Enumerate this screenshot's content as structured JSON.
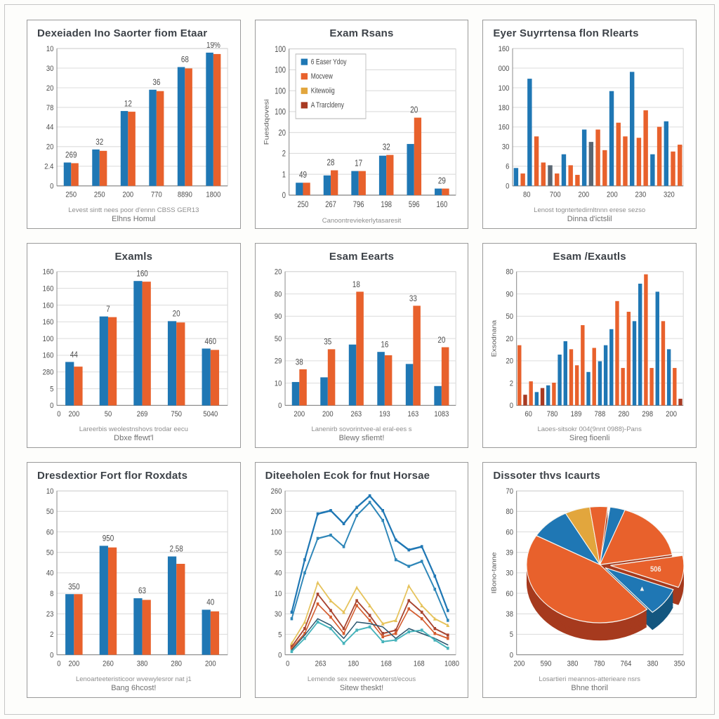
{
  "colors": {
    "blue": "#1f77b4",
    "blue2": "#2e86b8",
    "orange": "#e8612c",
    "amber": "#e2a63d",
    "darkred": "#a83a22",
    "gray": "#5a6672",
    "teal": "#46b3bb",
    "navy": "#29556e",
    "brown": "#a8432e",
    "orangered": "#d45c2e",
    "yellow": "#e6c35c",
    "grid": "#dcdcdc",
    "axis": "#8f8f8f",
    "tick": "#4e4e4e",
    "bar_label": "#4c4c4c",
    "title": "#3d4248",
    "pie_dark": {
      "blue": "#14567f",
      "orange": "#a63a1e",
      "amber": "#a87b22",
      "darkred": "#7c2a16"
    }
  },
  "chart_data": [
    {
      "name": "chart-1",
      "type": "bar",
      "variant": "grouped",
      "title": "Dexeiaden Ino Saorter fiom Etaar",
      "title_align": "left",
      "yticks": [
        "10",
        "30",
        "20",
        "78",
        "44",
        "20",
        "2.4",
        "0"
      ],
      "xticks": [
        "250",
        "250",
        "200",
        "770",
        "8890",
        "1800"
      ],
      "groups": [
        [
          0.17,
          0.165
        ],
        [
          0.265,
          0.255
        ],
        [
          0.545,
          0.54
        ],
        [
          0.7,
          0.69
        ],
        [
          0.865,
          0.855
        ],
        [
          0.97,
          0.96
        ]
      ],
      "bar_labels": [
        "269",
        "32",
        "12",
        "36",
        "68",
        "19%"
      ],
      "caption1": "Levest sintt nees poor d'ennn CBSS GER13",
      "caption2": "Elhns Homul"
    },
    {
      "name": "chart-2",
      "type": "bar",
      "variant": "grouped",
      "title": "Exam Rsans",
      "title_align": "center",
      "ylabel": "Fuesdqovesi",
      "yticks": [
        "100",
        "100",
        "100",
        "100",
        "20",
        "2",
        "1",
        "0"
      ],
      "xticks": [
        "250",
        "267",
        "796",
        "198",
        "596",
        "160"
      ],
      "groups": [
        [
          0.085,
          0.085
        ],
        [
          0.135,
          0.17
        ],
        [
          0.165,
          0.165
        ],
        [
          0.27,
          0.275
        ],
        [
          0.35,
          0.53
        ],
        [
          0.045,
          0.045
        ]
      ],
      "bar_labels": [
        "49",
        "28",
        "17",
        "32",
        "20",
        "29"
      ],
      "legend": [
        {
          "color": "blue",
          "label": "6 Easer Ydoy"
        },
        {
          "color": "orange",
          "label": "Mocvew"
        },
        {
          "color": "amber",
          "label": "Kitewoiig"
        },
        {
          "color": "darkred",
          "label": "A Trarcldeny"
        }
      ],
      "caption1": "Canoontreviekerlytasaresit",
      "caption2": ""
    },
    {
      "name": "chart-3",
      "type": "bar",
      "variant": "histogram",
      "title": "Eyer Suyrrtensa flon Rlearts",
      "title_align": "left",
      "yticks": [
        "160",
        "000",
        "100",
        "180",
        "160",
        "30",
        "6",
        "0"
      ],
      "xticks": [
        "80",
        "700",
        "200",
        "200",
        "230",
        "320"
      ],
      "bars": [
        {
          "c": "blue",
          "h": 0.13
        },
        {
          "c": "orange",
          "h": 0.09
        },
        {
          "c": "blue",
          "h": 0.78
        },
        {
          "c": "orange",
          "h": 0.36
        },
        {
          "c": "orange",
          "h": 0.17
        },
        {
          "c": "gray",
          "h": 0.15
        },
        {
          "c": "orange",
          "h": 0.09
        },
        {
          "c": "blue",
          "h": 0.23
        },
        {
          "c": "orange",
          "h": 0.15
        },
        {
          "c": "orange",
          "h": 0.08
        },
        {
          "c": "blue",
          "h": 0.41
        },
        {
          "c": "gray",
          "h": 0.32
        },
        {
          "c": "orange",
          "h": 0.41
        },
        {
          "c": "orange",
          "h": 0.26
        },
        {
          "c": "blue",
          "h": 0.69
        },
        {
          "c": "orange",
          "h": 0.46
        },
        {
          "c": "orange",
          "h": 0.36
        },
        {
          "c": "blue",
          "h": 0.83
        },
        {
          "c": "orange",
          "h": 0.35
        },
        {
          "c": "orange",
          "h": 0.55
        },
        {
          "c": "blue",
          "h": 0.23
        },
        {
          "c": "orange",
          "h": 0.43
        },
        {
          "c": "blue",
          "h": 0.47
        },
        {
          "c": "orange",
          "h": 0.25
        },
        {
          "c": "orange",
          "h": 0.3
        }
      ],
      "caption1": "Lenost togntertedirnltnnn erese sezso",
      "caption2": "Dinna d'ictslil"
    },
    {
      "name": "chart-4",
      "type": "bar",
      "variant": "grouped",
      "title": "Examls",
      "title_align": "center",
      "yticks": [
        "160",
        "160",
        "160",
        "160",
        "100",
        "160",
        "280",
        "5",
        "0"
      ],
      "xticks": [
        "0",
        "200",
        "50",
        "269",
        "750",
        "5040"
      ],
      "groups": [
        [
          0.325,
          0.29
        ],
        [
          0.665,
          0.66
        ],
        [
          0.93,
          0.925
        ],
        [
          0.63,
          0.62
        ],
        [
          0.425,
          0.415
        ]
      ],
      "bar_labels": [
        "44",
        "7",
        "160",
        "20",
        "460"
      ],
      "caption1": "Lareerbis weolestnshovs trodar eecu",
      "caption2": "Dbxe ffewt'l"
    },
    {
      "name": "chart-5",
      "type": "bar",
      "variant": "grouped",
      "title": "Esam Eearts",
      "title_align": "center",
      "yticks": [
        "20",
        "80",
        "90",
        "50",
        "29",
        "10",
        "0"
      ],
      "xticks": [
        "200",
        "200",
        "263",
        "193",
        "163",
        "1083"
      ],
      "groups": [
        [
          0.175,
          0.27
        ],
        [
          0.21,
          0.42
        ],
        [
          0.455,
          0.85
        ],
        [
          0.4,
          0.375
        ],
        [
          0.31,
          0.745
        ],
        [
          0.145,
          0.435
        ]
      ],
      "bar_labels": [
        "38",
        "35",
        "18",
        "16",
        "33",
        "20"
      ],
      "caption1": "Lanenirb sovorintvee-al eral-ees s",
      "caption2": "Blewy sfiemt!"
    },
    {
      "name": "chart-6",
      "type": "bar",
      "variant": "histogram",
      "title": "Esam /Exautls",
      "title_align": "center",
      "ylabel": "Exsodnana",
      "yticks": [
        "80",
        "90",
        "50",
        "20",
        "20",
        "2",
        "0"
      ],
      "xticks": [
        "60",
        "780",
        "189",
        "788",
        "280",
        "298",
        "200"
      ],
      "bars": [
        {
          "c": "orange",
          "h": 0.45
        },
        {
          "c": "darkred",
          "h": 0.08
        },
        {
          "c": "orange",
          "h": 0.18
        },
        {
          "c": "blue",
          "h": 0.1
        },
        {
          "c": "darkred",
          "h": 0.13
        },
        {
          "c": "blue",
          "h": 0.15
        },
        {
          "c": "orange",
          "h": 0.17
        },
        {
          "c": "blue",
          "h": 0.38
        },
        {
          "c": "blue",
          "h": 0.48
        },
        {
          "c": "orange",
          "h": 0.42
        },
        {
          "c": "orange",
          "h": 0.3
        },
        {
          "c": "orange",
          "h": 0.6
        },
        {
          "c": "blue",
          "h": 0.25
        },
        {
          "c": "orange",
          "h": 0.43
        },
        {
          "c": "blue",
          "h": 0.33
        },
        {
          "c": "blue",
          "h": 0.45
        },
        {
          "c": "blue",
          "h": 0.57
        },
        {
          "c": "orange",
          "h": 0.78
        },
        {
          "c": "orange",
          "h": 0.28
        },
        {
          "c": "orange",
          "h": 0.7
        },
        {
          "c": "blue",
          "h": 0.63
        },
        {
          "c": "blue",
          "h": 0.91
        },
        {
          "c": "orange",
          "h": 0.98
        },
        {
          "c": "orange",
          "h": 0.28
        },
        {
          "c": "blue",
          "h": 0.85
        },
        {
          "c": "orange",
          "h": 0.63
        },
        {
          "c": "blue",
          "h": 0.42
        },
        {
          "c": "orange",
          "h": 0.28
        },
        {
          "c": "darkred",
          "h": 0.05
        }
      ],
      "caption1": "Laoes-sitsokr 004(9nnt 0988)-Pans",
      "caption2": "Sireg fioenli"
    },
    {
      "name": "chart-7",
      "type": "bar",
      "variant": "grouped",
      "title": "Dresdextior Fort flor Roxdats",
      "title_align": "left",
      "yticks": [
        "10",
        "50",
        "60",
        "50",
        "40",
        "8",
        "23",
        "2",
        "0"
      ],
      "xticks": [
        "0",
        "200",
        "260",
        "380",
        "280",
        "200"
      ],
      "groups": [
        [
          0.37,
          0.37
        ],
        [
          0.665,
          0.655
        ],
        [
          0.345,
          0.335
        ],
        [
          0.6,
          0.555
        ],
        [
          0.275,
          0.265
        ]
      ],
      "bar_labels": [
        "350",
        "950",
        "63",
        "2.58",
        "40"
      ],
      "caption1": "Lenoarteeteristicoor wvewylesror nat j1",
      "caption2": "Bang 6hcost!"
    },
    {
      "name": "chart-8",
      "type": "line",
      "title": "Diteeholen Ecok for fnut Horsae",
      "title_align": "left",
      "yticks": [
        "260",
        "200",
        "100",
        "50",
        "40",
        "10",
        "30",
        "5",
        "0"
      ],
      "xticks": [
        "0",
        "263",
        "180",
        "168",
        "168",
        "1080"
      ],
      "series": [
        {
          "color": "blue",
          "width": 2.3,
          "marker": "square",
          "pts": [
            0.26,
            0.58,
            0.86,
            0.88,
            0.8,
            0.9,
            0.97,
            0.88,
            0.7,
            0.64,
            0.66,
            0.48,
            0.27
          ]
        },
        {
          "color": "blue2",
          "width": 2.0,
          "marker": "square",
          "pts": [
            0.22,
            0.5,
            0.71,
            0.73,
            0.66,
            0.85,
            0.93,
            0.82,
            0.58,
            0.54,
            0.57,
            0.4,
            0.21
          ]
        },
        {
          "color": "yellow",
          "width": 1.8,
          "marker": "triangle",
          "pts": [
            0.07,
            0.2,
            0.44,
            0.33,
            0.26,
            0.41,
            0.3,
            0.19,
            0.21,
            0.42,
            0.3,
            0.22,
            0.18
          ]
        },
        {
          "color": "brown",
          "width": 1.8,
          "marker": "square",
          "pts": [
            0.05,
            0.16,
            0.37,
            0.27,
            0.16,
            0.33,
            0.24,
            0.13,
            0.15,
            0.33,
            0.26,
            0.16,
            0.12
          ]
        },
        {
          "color": "orangered",
          "width": 1.6,
          "marker": "square",
          "pts": [
            0.04,
            0.13,
            0.31,
            0.23,
            0.13,
            0.3,
            0.21,
            0.11,
            0.13,
            0.28,
            0.22,
            0.13,
            0.1
          ]
        },
        {
          "color": "navy",
          "width": 1.4,
          "marker": "none",
          "pts": [
            0.03,
            0.12,
            0.22,
            0.18,
            0.1,
            0.2,
            0.19,
            0.17,
            0.1,
            0.16,
            0.13,
            0.1,
            0.06
          ]
        },
        {
          "color": "teal",
          "width": 1.8,
          "marker": "square",
          "pts": [
            0.02,
            0.1,
            0.2,
            0.16,
            0.07,
            0.15,
            0.17,
            0.08,
            0.09,
            0.14,
            0.15,
            0.09,
            0.04
          ]
        }
      ],
      "caption1": "Lemende sex neewervowterst/ecous",
      "caption2": "Sitew theskt!"
    },
    {
      "name": "chart-9",
      "type": "pie",
      "title": "Dissoter thvs Icaurts",
      "title_align": "left",
      "ylabel": "IBono-tanne",
      "yticks": [
        "70",
        "80",
        "60",
        "39",
        "30",
        "60",
        "38",
        "5",
        "0"
      ],
      "xticks": [
        "200",
        "590",
        "380",
        "780",
        "764",
        "380",
        "350"
      ],
      "depth": 22,
      "slices": [
        {
          "color": "amber",
          "a0": 332,
          "a1": 352,
          "explode": 0
        },
        {
          "color": "orange",
          "a0": 352,
          "a1": 366,
          "explode": 0
        },
        {
          "color": "blue",
          "a0": 8,
          "a1": 20,
          "explode": 0
        },
        {
          "color": "orange",
          "a0": 20,
          "a1": 80,
          "explode": 0
        },
        {
          "color": "orange",
          "a0": 80,
          "a1": 112,
          "explode": 16,
          "label": "506"
        },
        {
          "color": "blue",
          "a0": 112,
          "a1": 140,
          "explode": 10,
          "marker": true
        },
        {
          "color": "orange",
          "a0": 140,
          "a1": 300,
          "explode": 0
        },
        {
          "color": "blue",
          "a0": 300,
          "a1": 332,
          "explode": 0
        }
      ],
      "caption1": "Losartieri meannos-atterieare nsrs",
      "caption2": "Bhne thoril"
    }
  ]
}
